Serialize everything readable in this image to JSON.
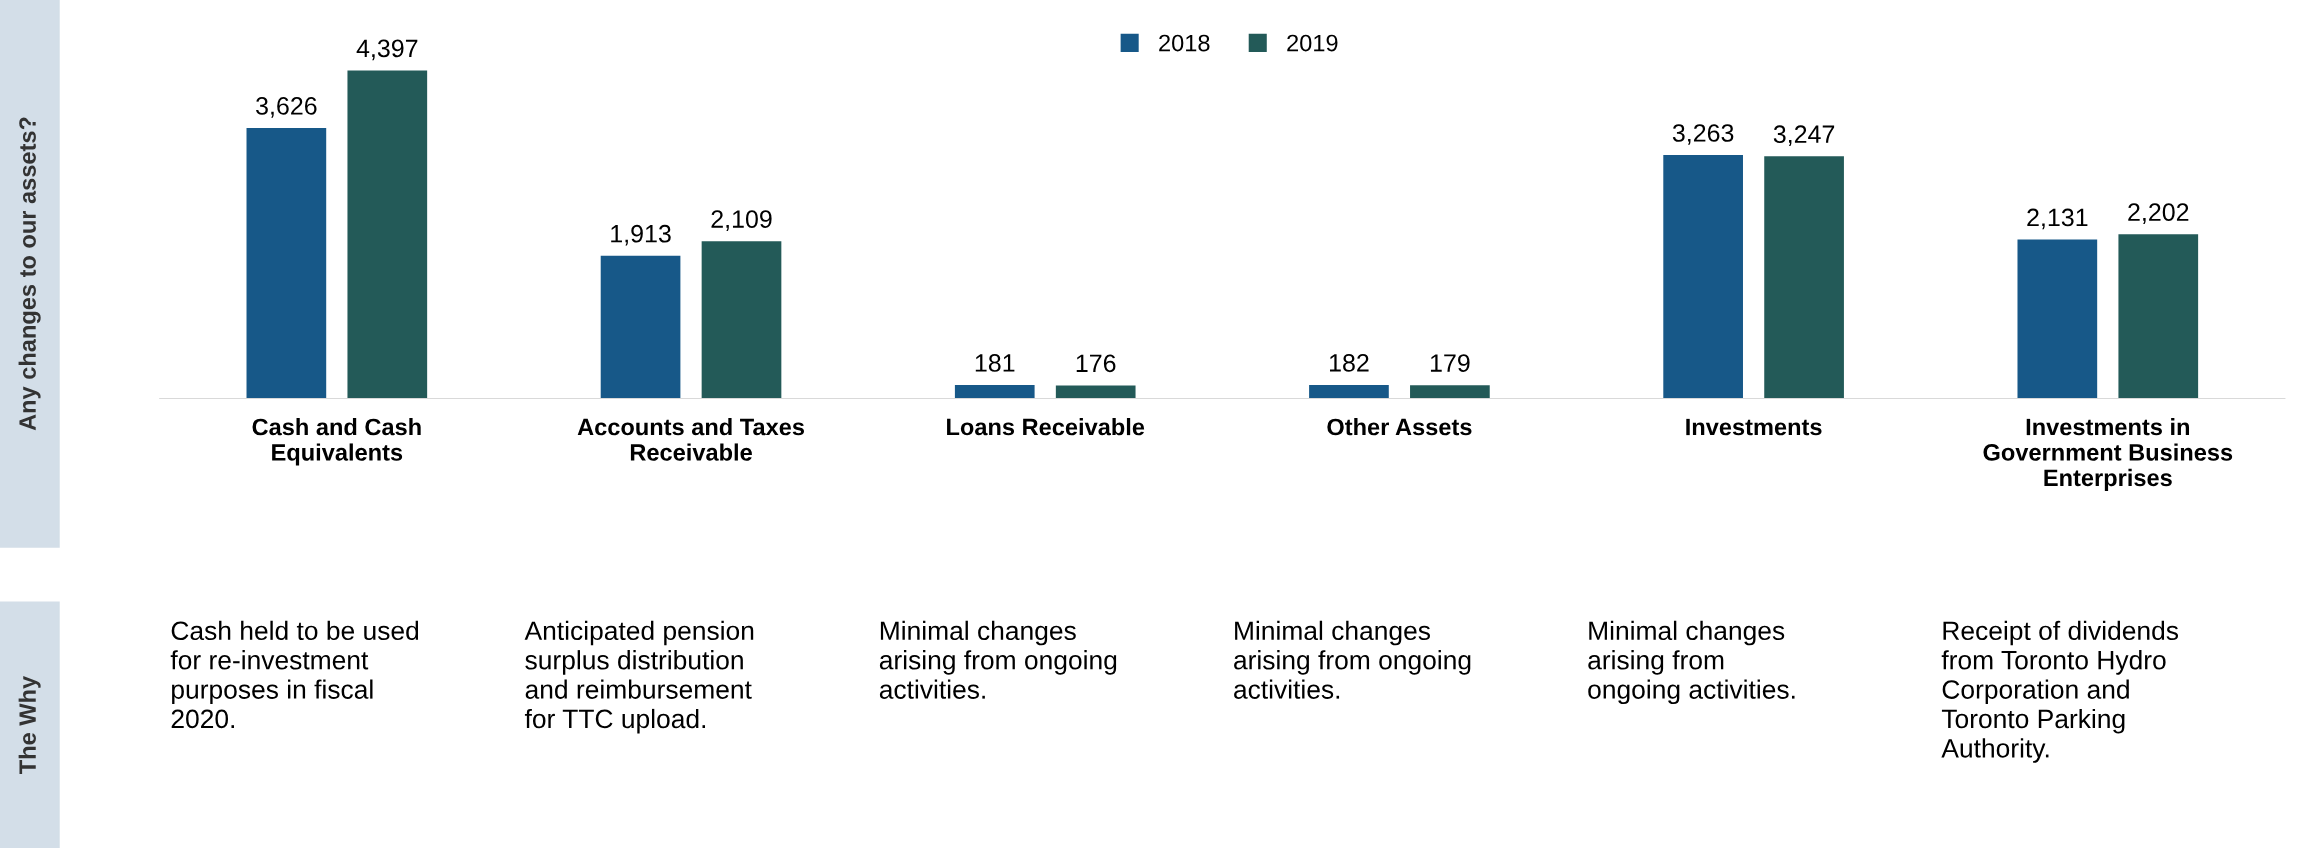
{
  "chart_data": {
    "type": "bar",
    "categories": [
      "Cash and Cash\nEquivalents",
      "Accounts and Taxes\nReceivable",
      "Loans Receivable",
      "Other Assets",
      "Investments",
      "Investments in\nGovernment Business\nEnterprises"
    ],
    "series": [
      {
        "name": "2018",
        "color": "#175888",
        "values": [
          3626,
          1913,
          181,
          182,
          3263,
          2131
        ],
        "value_labels": [
          "3,626",
          "1,913",
          "181",
          "182",
          "3,263",
          "2,131"
        ]
      },
      {
        "name": "2019",
        "color": "#235a58",
        "values": [
          4397,
          2109,
          176,
          179,
          3247,
          2202
        ],
        "value_labels": [
          "4,397",
          "2,109",
          "176",
          "179",
          "3,247",
          "2,202"
        ]
      }
    ],
    "relative": false,
    "legend": "top",
    "grid": false,
    "annotations": [
      "Any changes to our assets?",
      "The Why",
      "Cash held to be used\nfor re-investment\npurposes in fiscal\n2020.",
      "Anticipated pension\nsurplus distribution\nand reimbursement\nfor TTC upload.",
      "Minimal changes\narising from ongoing\nactivities.",
      "Minimal changes\narising from ongoing\nactivities.",
      "Minimal changes\narising from\nongoing activities.",
      "Receipt of dividends\nfrom Toronto Hydro\nCorporation and\nToronto Parking\nAuthority."
    ]
  }
}
